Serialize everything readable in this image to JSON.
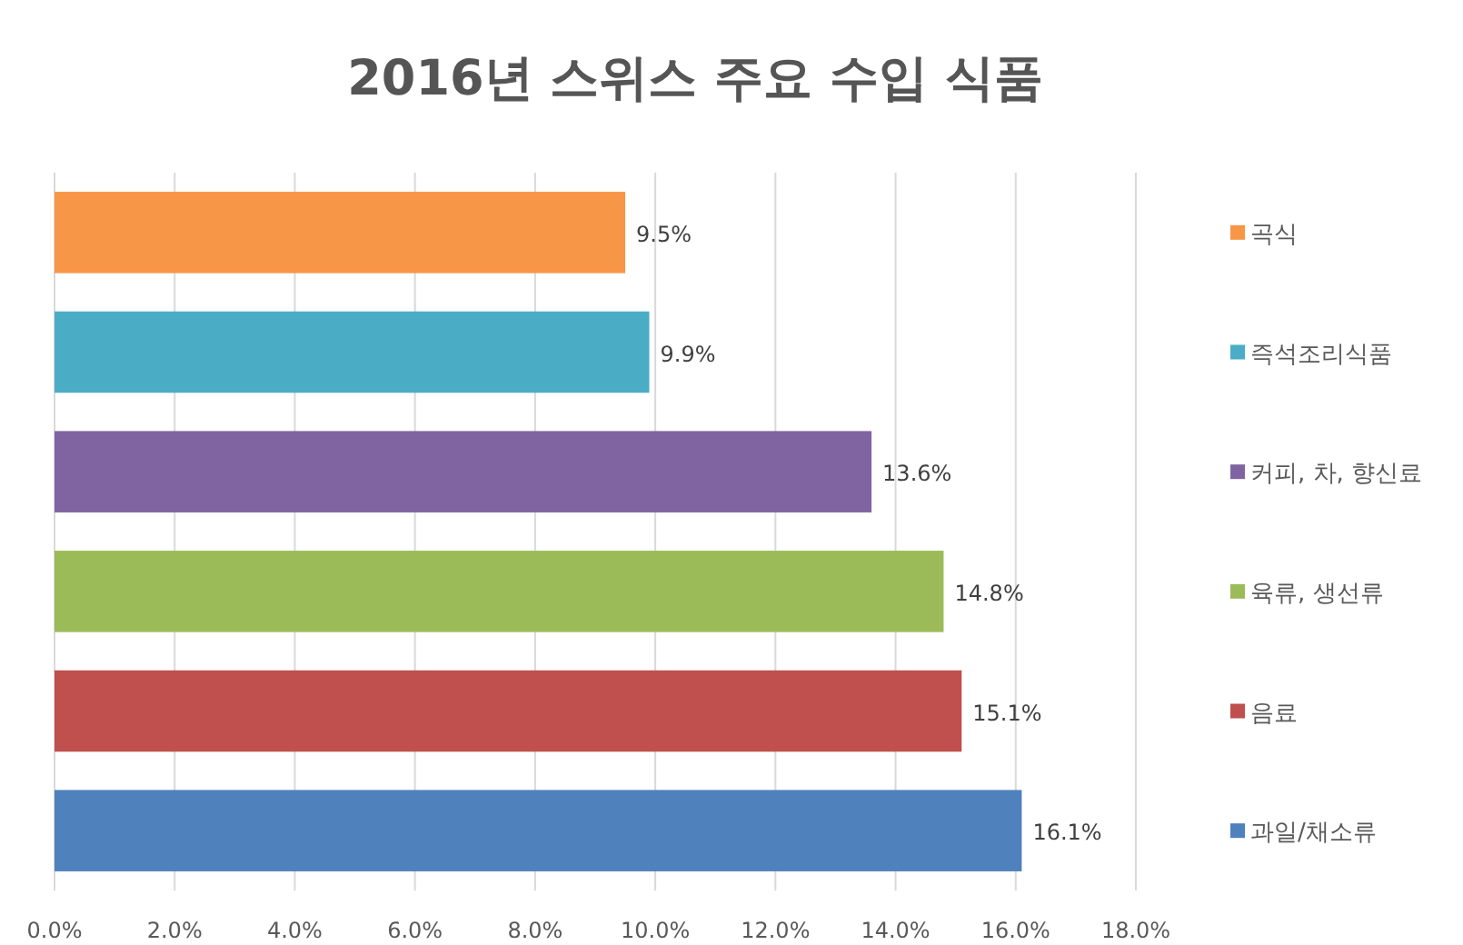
{
  "chart_data": {
    "type": "bar",
    "orientation": "horizontal",
    "title": "2016년 스위스 주요 수입 식품",
    "categories": [
      null,
      null,
      null,
      null,
      null,
      null
    ],
    "series": [
      {
        "name": "곡식",
        "color": "#f79646",
        "values": [
          9.5,
          null,
          null,
          null,
          null,
          null
        ],
        "value_labels": [
          "9.5%",
          null,
          null,
          null,
          null,
          null
        ]
      },
      {
        "name": "즉석조리식품",
        "color": "#4bacc6",
        "values": [
          null,
          9.9,
          null,
          null,
          null,
          null
        ],
        "value_labels": [
          null,
          "9.9%",
          null,
          null,
          null,
          null
        ]
      },
      {
        "name": "커피, 차, 향신료",
        "color": "#8064a2",
        "values": [
          null,
          null,
          13.6,
          null,
          null,
          null
        ],
        "value_labels": [
          null,
          null,
          "13.6%",
          null,
          null,
          null
        ]
      },
      {
        "name": "육류, 생선류",
        "color": "#9bbb59",
        "values": [
          null,
          null,
          null,
          14.8,
          null,
          null
        ],
        "value_labels": [
          null,
          null,
          null,
          "14.8%",
          null,
          null
        ]
      },
      {
        "name": "음료",
        "color": "#c0504d",
        "values": [
          null,
          null,
          null,
          null,
          15.1,
          null
        ],
        "value_labels": [
          null,
          null,
          null,
          null,
          "15.1%",
          null
        ]
      },
      {
        "name": "과일/채소류",
        "color": "#4f81bd",
        "values": [
          null,
          null,
          null,
          null,
          null,
          16.1
        ],
        "value_labels": [
          null,
          null,
          null,
          null,
          null,
          "16.1%"
        ]
      }
    ],
    "xlim": [
      0,
      18
    ],
    "xticks": [
      {
        "value": 0,
        "label": "0.0%"
      },
      {
        "value": 2,
        "label": "2.0%"
      },
      {
        "value": 4,
        "label": "4.0%"
      },
      {
        "value": 6,
        "label": "6.0%"
      },
      {
        "value": 8,
        "label": "8.0%"
      },
      {
        "value": 10,
        "label": "10.0%"
      },
      {
        "value": 12,
        "label": "12.0%"
      },
      {
        "value": 14,
        "label": "14.0%"
      },
      {
        "value": 16,
        "label": "16.0%"
      },
      {
        "value": 18,
        "label": "18.0%"
      }
    ],
    "grid": "x",
    "legend": "right",
    "tick_labels": "x"
  }
}
